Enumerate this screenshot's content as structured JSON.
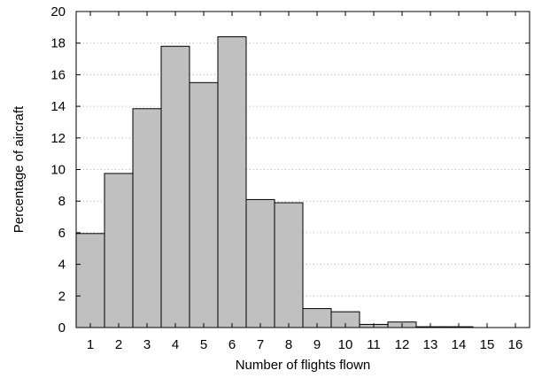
{
  "chart_data": {
    "type": "bar",
    "xlabel": "Number of flights flown",
    "ylabel": "Percentage of aircraft",
    "categories": [
      "1",
      "2",
      "3",
      "4",
      "5",
      "6",
      "7",
      "8",
      "9",
      "10",
      "11",
      "12",
      "13",
      "14",
      "15",
      "16"
    ],
    "values": [
      5.95,
      9.75,
      13.85,
      17.8,
      15.5,
      18.4,
      8.1,
      7.9,
      1.2,
      1.0,
      0.2,
      0.35,
      0.05,
      0.05,
      0.0,
      0.0
    ],
    "ylim": [
      0,
      20
    ],
    "yticks": [
      0,
      2,
      4,
      6,
      8,
      10,
      12,
      14,
      16,
      18,
      20
    ],
    "grid": "horizontal dotted",
    "colors": {
      "bar_fill": "#c0c0c0",
      "bar_stroke": "#000000",
      "grid": "#b0b0b0"
    }
  }
}
